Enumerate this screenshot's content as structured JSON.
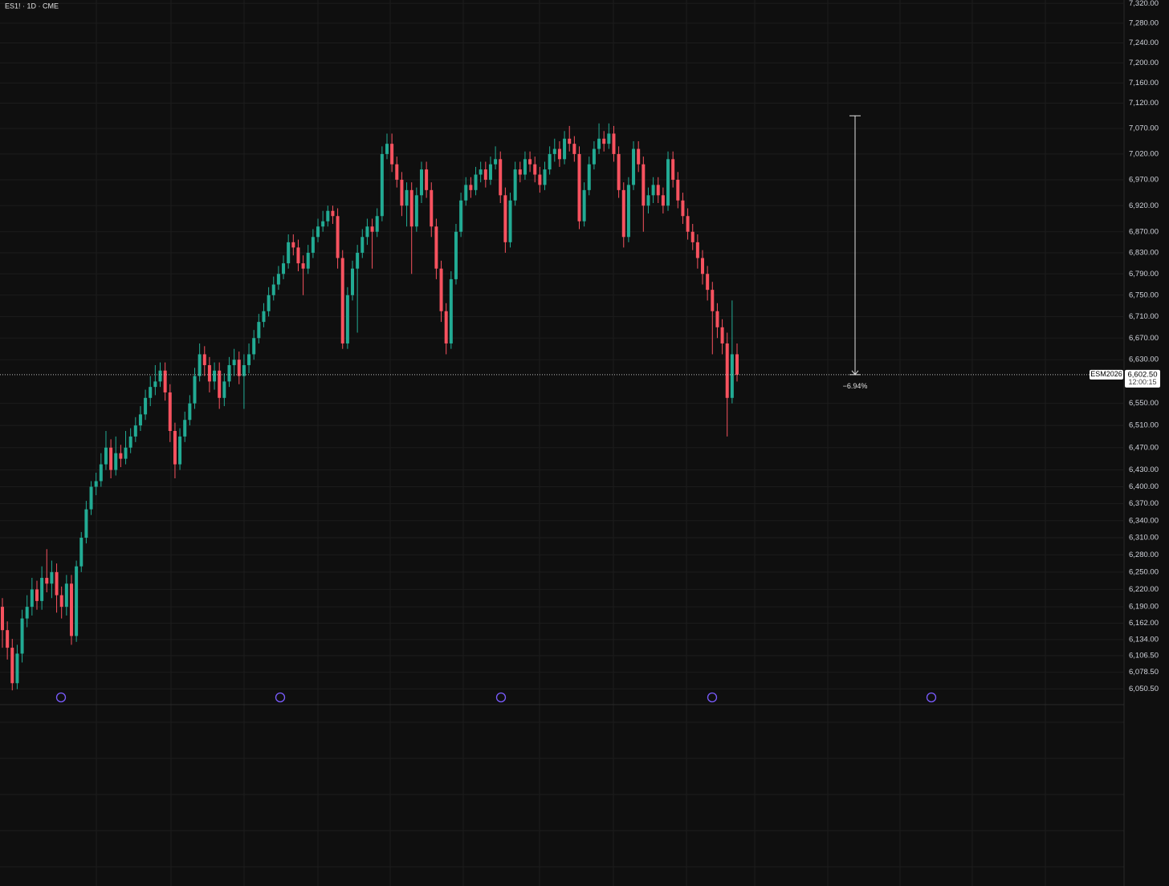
{
  "chart_data": {
    "type": "candlestick",
    "title": "ES1! · 1D · CME",
    "log_scale": true,
    "grid": true,
    "up_color": "#22ab94",
    "down_color": "#f7525f",
    "ylim": [
      6024,
      7327
    ],
    "yticks": [
      {
        "value": 7320,
        "label": "7,320.00"
      },
      {
        "value": 7280,
        "label": "7,280.00"
      },
      {
        "value": 7240,
        "label": "7,240.00"
      },
      {
        "value": 7200,
        "label": "7,200.00"
      },
      {
        "value": 7160,
        "label": "7,160.00"
      },
      {
        "value": 7120,
        "label": "7,120.00"
      },
      {
        "value": 7070,
        "label": "7,070.00"
      },
      {
        "value": 7020,
        "label": "7,020.00"
      },
      {
        "value": 6970,
        "label": "6,970.00"
      },
      {
        "value": 6920,
        "label": "6,920.00"
      },
      {
        "value": 6870,
        "label": "6,870.00"
      },
      {
        "value": 6830,
        "label": "6,830.00"
      },
      {
        "value": 6790,
        "label": "6,790.00"
      },
      {
        "value": 6750,
        "label": "6,750.00"
      },
      {
        "value": 6710,
        "label": "6,710.00"
      },
      {
        "value": 6670,
        "label": "6,670.00"
      },
      {
        "value": 6630,
        "label": "6,630.00"
      },
      {
        "value": 6550,
        "label": "6,550.00"
      },
      {
        "value": 6510,
        "label": "6,510.00"
      },
      {
        "value": 6470,
        "label": "6,470.00"
      },
      {
        "value": 6430,
        "label": "6,430.00"
      },
      {
        "value": 6400,
        "label": "6,400.00"
      },
      {
        "value": 6370,
        "label": "6,370.00"
      },
      {
        "value": 6340,
        "label": "6,340.00"
      },
      {
        "value": 6310,
        "label": "6,310.00"
      },
      {
        "value": 6280,
        "label": "6,280.00"
      },
      {
        "value": 6250,
        "label": "6,250.00"
      },
      {
        "value": 6220,
        "label": "6,220.00"
      },
      {
        "value": 6190,
        "label": "6,190.00"
      },
      {
        "value": 6162,
        "label": "6,162.00"
      },
      {
        "value": 6134,
        "label": "6,134.00"
      },
      {
        "value": 6106.5,
        "label": "6,106.50"
      },
      {
        "value": 6078.5,
        "label": "6,078.50"
      },
      {
        "value": 6050.5,
        "label": "6,050.50"
      }
    ],
    "open": [
      6190,
      6150,
      6120,
      6060,
      6110,
      6170,
      6190,
      6220,
      6200,
      6240,
      6230,
      6250,
      6210,
      6190,
      6230,
      6140,
      6260,
      6310,
      6360,
      6400,
      6410,
      6440,
      6470,
      6430,
      6460,
      6450,
      6470,
      6490,
      6510,
      6530,
      6560,
      6580,
      6590,
      6610,
      6570,
      6500,
      6440,
      6490,
      6520,
      6550,
      6600,
      6640,
      6620,
      6590,
      6610,
      6560,
      6590,
      6620,
      6630,
      6600,
      6620,
      6640,
      6670,
      6700,
      6720,
      6750,
      6770,
      6790,
      6810,
      6850,
      6840,
      6810,
      6800,
      6830,
      6860,
      6880,
      6890,
      6910,
      6900,
      6820,
      6660,
      6750,
      6800,
      6830,
      6860,
      6880,
      6870,
      6900,
      7020,
      7040,
      7000,
      6970,
      6920,
      6950,
      6880,
      6940,
      6990,
      6950,
      6880,
      6800,
      6720,
      6660,
      6780,
      6870,
      6930,
      6960,
      6950,
      6980,
      6990,
      6970,
      7000,
      7010,
      6940,
      6850,
      6930,
      6990,
      6980,
      7010,
      7000,
      6980,
      6960,
      6990,
      7020,
      7030,
      7010,
      7050,
      7040,
      7020,
      6890,
      6950,
      7000,
      7030,
      7050,
      7040,
      7060,
      7020,
      6950,
      6860,
      6960,
      7030,
      7000,
      6920,
      6940,
      6960,
      6940,
      6920,
      7010,
      6970,
      6930,
      6900,
      6870,
      6850,
      6820,
      6790,
      6760,
      6720,
      6690,
      6660,
      6560,
      6640
    ],
    "high": [
      6205,
      6165,
      6135,
      6125,
      6185,
      6210,
      6240,
      6235,
      6260,
      6290,
      6270,
      6265,
      6225,
      6245,
      6245,
      6270,
      6320,
      6375,
      6410,
      6425,
      6460,
      6500,
      6485,
      6490,
      6475,
      6500,
      6505,
      6525,
      6545,
      6575,
      6600,
      6620,
      6625,
      6625,
      6585,
      6515,
      6505,
      6535,
      6565,
      6615,
      6660,
      6655,
      6635,
      6625,
      6625,
      6605,
      6635,
      6650,
      6645,
      6640,
      6660,
      6685,
      6715,
      6735,
      6765,
      6785,
      6805,
      6825,
      6865,
      6865,
      6855,
      6825,
      6845,
      6875,
      6895,
      6910,
      6920,
      6920,
      6915,
      6835,
      6765,
      6815,
      6845,
      6875,
      6895,
      6895,
      6915,
      7035,
      7060,
      7060,
      7015,
      6985,
      6965,
      6965,
      6955,
      7005,
      7005,
      6965,
      6895,
      6815,
      6735,
      6795,
      6885,
      6945,
      6975,
      6975,
      6995,
      7005,
      7005,
      7015,
      7035,
      7025,
      6955,
      6945,
      7005,
      7005,
      7025,
      7025,
      7015,
      6995,
      7005,
      7035,
      7050,
      7045,
      7065,
      7075,
      7055,
      7035,
      6965,
      7015,
      7045,
      7080,
      7065,
      7080,
      7075,
      7035,
      6965,
      6975,
      7045,
      7045,
      7015,
      6955,
      6975,
      6975,
      6955,
      7025,
      7025,
      6985,
      6945,
      6915,
      6885,
      6865,
      6835,
      6805,
      6775,
      6735,
      6705,
      6680,
      6740,
      6660
    ],
    "low": [
      6120,
      6100,
      6048,
      6050,
      6095,
      6155,
      6175,
      6185,
      6185,
      6215,
      6205,
      6180,
      6170,
      6175,
      6125,
      6130,
      6250,
      6300,
      6350,
      6385,
      6400,
      6430,
      6415,
      6420,
      6435,
      6440,
      6460,
      6480,
      6500,
      6520,
      6545,
      6565,
      6580,
      6555,
      6480,
      6415,
      6430,
      6480,
      6510,
      6540,
      6590,
      6600,
      6570,
      6575,
      6540,
      6545,
      6580,
      6600,
      6585,
      6540,
      6605,
      6630,
      6660,
      6690,
      6710,
      6740,
      6760,
      6780,
      6800,
      6825,
      6795,
      6750,
      6790,
      6820,
      6850,
      6870,
      6880,
      6885,
      6800,
      6650,
      6650,
      6740,
      6680,
      6820,
      6845,
      6800,
      6860,
      6890,
      7010,
      6985,
      6955,
      6900,
      6880,
      6790,
      6870,
      6925,
      6935,
      6860,
      6780,
      6700,
      6640,
      6650,
      6770,
      6860,
      6920,
      6935,
      6940,
      6965,
      6955,
      6960,
      6990,
      6925,
      6830,
      6840,
      6920,
      6965,
      6970,
      6985,
      6965,
      6945,
      6950,
      6980,
      7005,
      6995,
      7000,
      7025,
      7005,
      6875,
      6880,
      6940,
      6990,
      7020,
      7025,
      7030,
      7005,
      6935,
      6840,
      6850,
      6950,
      6985,
      6870,
      6905,
      6925,
      6925,
      6905,
      6910,
      6955,
      6915,
      6885,
      6855,
      6835,
      6800,
      6770,
      6740,
      6640,
      6670,
      6640,
      6490,
      6550,
      6590
    ],
    "close": [
      6150,
      6120,
      6060,
      6110,
      6170,
      6190,
      6220,
      6200,
      6240,
      6230,
      6250,
      6210,
      6190,
      6230,
      6140,
      6260,
      6310,
      6360,
      6400,
      6410,
      6440,
      6470,
      6430,
      6460,
      6450,
      6470,
      6490,
      6510,
      6530,
      6560,
      6580,
      6590,
      6610,
      6570,
      6500,
      6440,
      6490,
      6520,
      6550,
      6600,
      6640,
      6620,
      6590,
      6610,
      6560,
      6590,
      6620,
      6630,
      6600,
      6620,
      6640,
      6670,
      6700,
      6720,
      6750,
      6770,
      6790,
      6810,
      6850,
      6840,
      6810,
      6800,
      6830,
      6860,
      6880,
      6890,
      6910,
      6900,
      6820,
      6660,
      6750,
      6800,
      6830,
      6860,
      6880,
      6870,
      6900,
      7020,
      7040,
      7000,
      6970,
      6920,
      6950,
      6880,
      6940,
      6990,
      6950,
      6880,
      6800,
      6720,
      6660,
      6780,
      6870,
      6930,
      6960,
      6950,
      6980,
      6990,
      6970,
      7000,
      7010,
      6940,
      6850,
      6930,
      6990,
      6980,
      7010,
      7000,
      6980,
      6960,
      6990,
      7020,
      7030,
      7010,
      7050,
      7040,
      7020,
      6890,
      6950,
      7000,
      7030,
      7050,
      7040,
      7060,
      7020,
      6950,
      6860,
      6960,
      7030,
      7000,
      6920,
      6940,
      6960,
      6940,
      6920,
      7010,
      6970,
      6930,
      6900,
      6870,
      6850,
      6820,
      6790,
      6760,
      6720,
      6690,
      6660,
      6560,
      6640,
      6602.5
    ],
    "last_price": {
      "value": 6602.5,
      "label": "6,602.50"
    },
    "symbol_label": "ESM2026",
    "countdown": "12:00:15",
    "measure": {
      "from": 7095,
      "label": "−6.94%"
    }
  }
}
